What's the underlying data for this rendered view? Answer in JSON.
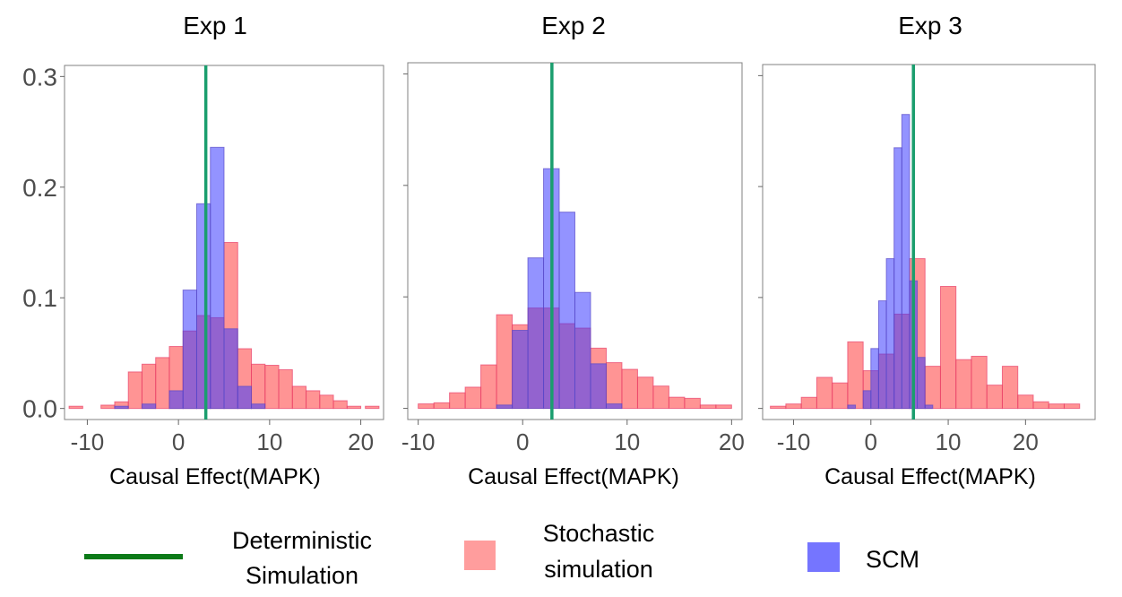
{
  "chart_data": [
    {
      "type": "histogram",
      "title": "Exp 1",
      "xlabel": "Causal Effect(MAPK)",
      "xlim": [
        -12.5,
        22.5
      ],
      "ylim": [
        -0.01,
        0.31
      ],
      "xticks": [
        -10,
        0,
        10,
        20
      ],
      "yticks": [
        0.0,
        0.1,
        0.2,
        0.3
      ],
      "ytick_labels": [
        "0.0",
        "0.1",
        "0.2",
        "0.3"
      ],
      "vline": 3,
      "series": [
        {
          "name": "Stochastic simulation",
          "bins": [
            [
              -12,
              -10.5,
              0.002
            ],
            [
              -8.5,
              -7,
              0.003
            ],
            [
              -7,
              -5.5,
              0.006
            ],
            [
              -5.5,
              -4,
              0.033
            ],
            [
              -4,
              -2.5,
              0.04
            ],
            [
              -2.5,
              -1,
              0.046
            ],
            [
              -1,
              0.5,
              0.056
            ],
            [
              0.5,
              2,
              0.07
            ],
            [
              2,
              3.5,
              0.084
            ],
            [
              3.5,
              5,
              0.082
            ],
            [
              5,
              6.5,
              0.15
            ],
            [
              6.5,
              8,
              0.054
            ],
            [
              8,
              9.5,
              0.04
            ],
            [
              9.5,
              11,
              0.039
            ],
            [
              11,
              12.5,
              0.035
            ],
            [
              12.5,
              14,
              0.02
            ],
            [
              14,
              15.5,
              0.016
            ],
            [
              15.5,
              17,
              0.012
            ],
            [
              17,
              18.5,
              0.007
            ],
            [
              18.5,
              20,
              0.002
            ],
            [
              20.5,
              22,
              0.002
            ]
          ]
        },
        {
          "name": "SCM",
          "bins": [
            [
              -7,
              -5.5,
              0.002
            ],
            [
              -4,
              -2.5,
              0.004
            ],
            [
              -1,
              0.5,
              0.016
            ],
            [
              0.5,
              2,
              0.107
            ],
            [
              2,
              3.5,
              0.185
            ],
            [
              3.5,
              5,
              0.236
            ],
            [
              5,
              6.5,
              0.072
            ],
            [
              6.5,
              8,
              0.02
            ],
            [
              8,
              9.5,
              0.004
            ]
          ]
        }
      ]
    },
    {
      "type": "histogram",
      "title": "Exp 2",
      "xlabel": "Causal Effect(MAPK)",
      "xlim": [
        -11,
        21
      ],
      "ylim": [
        -0.01,
        0.31
      ],
      "xticks": [
        -10,
        0,
        10,
        20
      ],
      "yticks": [
        0.0,
        0.1,
        0.2,
        0.3
      ],
      "vline": 2.8,
      "series": [
        {
          "name": "Stochastic simulation",
          "bins": [
            [
              -10,
              -8.5,
              0.004
            ],
            [
              -8.5,
              -7,
              0.005
            ],
            [
              -7,
              -5.5,
              0.014
            ],
            [
              -5.5,
              -4,
              0.019
            ],
            [
              -4,
              -2.5,
              0.039
            ],
            [
              -2.5,
              -1,
              0.084
            ],
            [
              -1,
              0.5,
              0.075
            ],
            [
              0.5,
              2,
              0.09
            ],
            [
              2,
              3.5,
              0.09
            ],
            [
              3.5,
              5,
              0.076
            ],
            [
              5,
              6.5,
              0.072
            ],
            [
              6.5,
              8,
              0.054
            ],
            [
              8,
              9.5,
              0.041
            ],
            [
              9.5,
              11,
              0.035
            ],
            [
              11,
              12.5,
              0.028
            ],
            [
              12.5,
              14,
              0.02
            ],
            [
              14,
              15.5,
              0.01
            ],
            [
              15.5,
              17,
              0.009
            ],
            [
              17,
              18.5,
              0.003
            ],
            [
              18.5,
              20,
              0.003
            ]
          ]
        },
        {
          "name": "SCM",
          "bins": [
            [
              -2.5,
              -1,
              0.003
            ],
            [
              -1,
              0.5,
              0.07
            ],
            [
              0.5,
              2,
              0.135
            ],
            [
              2,
              3.5,
              0.215
            ],
            [
              3.5,
              5,
              0.176
            ],
            [
              5,
              6.5,
              0.104
            ],
            [
              6.5,
              8,
              0.04
            ],
            [
              8,
              9.5,
              0.004
            ]
          ]
        }
      ]
    },
    {
      "type": "histogram",
      "title": "Exp 3",
      "xlabel": "Causal Effect(MAPK)",
      "xlim": [
        -14,
        29
      ],
      "ylim": [
        -0.01,
        0.31
      ],
      "xticks": [
        -10,
        0,
        10,
        20
      ],
      "yticks": [
        0.0,
        0.1,
        0.2,
        0.3
      ],
      "vline": 5.5,
      "series": [
        {
          "name": "Stochastic simulation",
          "bins": [
            [
              -13,
              -11,
              0.002
            ],
            [
              -11,
              -9,
              0.004
            ],
            [
              -9,
              -7,
              0.01
            ],
            [
              -7,
              -5,
              0.028
            ],
            [
              -5,
              -3,
              0.023
            ],
            [
              -3,
              -1,
              0.06
            ],
            [
              -1,
              1,
              0.034
            ],
            [
              1,
              3,
              0.049
            ],
            [
              3,
              5,
              0.085
            ],
            [
              5,
              7,
              0.135
            ],
            [
              7,
              9,
              0.038
            ],
            [
              9,
              11,
              0.11
            ],
            [
              11,
              13,
              0.044
            ],
            [
              13,
              15,
              0.047
            ],
            [
              15,
              17,
              0.021
            ],
            [
              17,
              19,
              0.038
            ],
            [
              19,
              21,
              0.012
            ],
            [
              21,
              23,
              0.006
            ],
            [
              23,
              25,
              0.004
            ],
            [
              25,
              27,
              0.004
            ]
          ]
        },
        {
          "name": "SCM",
          "bins": [
            [
              -3,
              -2,
              0.003
            ],
            [
              -1,
              0,
              0.016
            ],
            [
              0,
              1,
              0.054
            ],
            [
              1,
              2,
              0.097
            ],
            [
              2,
              3,
              0.135
            ],
            [
              3,
              4,
              0.235
            ],
            [
              4,
              5,
              0.265
            ],
            [
              5,
              6,
              0.115
            ],
            [
              6,
              7,
              0.046
            ],
            [
              7,
              8,
              0.003
            ]
          ]
        }
      ]
    }
  ],
  "legend": {
    "items": [
      {
        "key": "deterministic",
        "label_line1": "Deterministic",
        "label_line2": "Simulation",
        "color": "#0c7a18"
      },
      {
        "key": "stochastic",
        "label_line1": "Stochastic",
        "label_line2": "simulation",
        "color": "#ff3b3b"
      },
      {
        "key": "scm",
        "label_line1": "SCM",
        "label_line2": "",
        "color": "#4b4bf5"
      }
    ]
  },
  "colors": {
    "stochastic": "#ff4d4d",
    "stochastic_edge": "#e8406a",
    "scm": "#3b3bff",
    "scm_edge": "#5a4bc8",
    "vline": "#1a9e6e",
    "panel_border": "#808080"
  }
}
